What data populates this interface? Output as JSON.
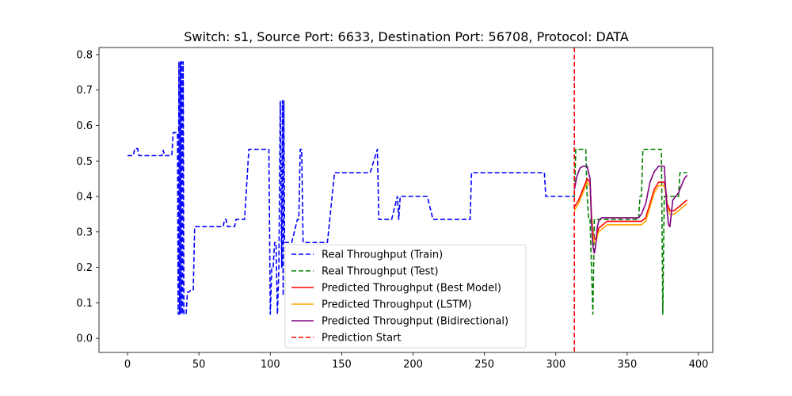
{
  "chart_data": {
    "type": "line",
    "title": "Switch: s1, Source Port: 6633, Destination Port: 56708, Protocol: DATA",
    "xlabel": "",
    "ylabel": "",
    "xlim": [
      -20,
      410
    ],
    "ylim": [
      -0.04,
      0.82
    ],
    "xticks": [
      0,
      50,
      100,
      150,
      200,
      250,
      300,
      350,
      400
    ],
    "xtick_labels": [
      "0",
      "50",
      "100",
      "150",
      "200",
      "250",
      "300",
      "350",
      "400"
    ],
    "yticks": [
      0.0,
      0.1,
      0.2,
      0.3,
      0.4,
      0.5,
      0.6,
      0.7,
      0.8
    ],
    "ytick_labels": [
      "0.0",
      "0.1",
      "0.2",
      "0.3",
      "0.4",
      "0.5",
      "0.6",
      "0.7",
      "0.8"
    ],
    "grid": false,
    "legend_position": "lower-center",
    "prediction_start_x": 313,
    "series": [
      {
        "name": "Real Throughput (Train)",
        "color": "#0000ff",
        "style": "dashed",
        "x": [
          0,
          4,
          5,
          7,
          8,
          10,
          11,
          24,
          25,
          26,
          27,
          31,
          32,
          35,
          35.5,
          36,
          36.5,
          37,
          37.5,
          38,
          38.5,
          39,
          39.5,
          40,
          41,
          42,
          43,
          44,
          46,
          47,
          48,
          49,
          50,
          67,
          68,
          69,
          70,
          71,
          75,
          76,
          77,
          78,
          80,
          82,
          85,
          86,
          90,
          95,
          99,
          100,
          101,
          102,
          103,
          104,
          105,
          106,
          107,
          108,
          108.5,
          109,
          109.5,
          110,
          110.5,
          111,
          112,
          113,
          114,
          115,
          119,
          120,
          121,
          122,
          123,
          124,
          125,
          126,
          127,
          128,
          130,
          140,
          145,
          146,
          150,
          170,
          175,
          176,
          177,
          180,
          185,
          189,
          190,
          191,
          192,
          193,
          195,
          200,
          210,
          214,
          215,
          220,
          230,
          240,
          241,
          245,
          260,
          280,
          292,
          293,
          300,
          313
        ],
        "y": [
          0.515,
          0.515,
          0.535,
          0.535,
          0.515,
          0.515,
          0.515,
          0.515,
          0.53,
          0.515,
          0.515,
          0.515,
          0.58,
          0.58,
          0.068,
          0.78,
          0.068,
          0.78,
          0.068,
          0.78,
          0.068,
          0.78,
          0.068,
          0.068,
          0.068,
          0.13,
          0.13,
          0.135,
          0.135,
          0.315,
          0.315,
          0.315,
          0.315,
          0.315,
          0.335,
          0.335,
          0.315,
          0.315,
          0.315,
          0.335,
          0.335,
          0.335,
          0.335,
          0.335,
          0.533,
          0.533,
          0.533,
          0.533,
          0.533,
          0.068,
          0.2,
          0.2,
          0.27,
          0.27,
          0.068,
          0.2,
          0.67,
          0.2,
          0.67,
          0.12,
          0.67,
          0.27,
          0.27,
          0.27,
          0.27,
          0.27,
          0.27,
          0.27,
          0.335,
          0.335,
          0.533,
          0.533,
          0.27,
          0.27,
          0.27,
          0.27,
          0.27,
          0.27,
          0.27,
          0.27,
          0.467,
          0.467,
          0.467,
          0.467,
          0.533,
          0.335,
          0.335,
          0.335,
          0.335,
          0.4,
          0.335,
          0.4,
          0.4,
          0.4,
          0.4,
          0.4,
          0.4,
          0.335,
          0.335,
          0.335,
          0.335,
          0.335,
          0.467,
          0.467,
          0.467,
          0.467,
          0.467,
          0.4,
          0.4,
          0.4
        ]
      },
      {
        "name": "Real Throughput (Test)",
        "color": "#008000",
        "style": "dashed",
        "x": [
          313,
          314,
          320,
          321,
          322,
          323,
          324,
          325,
          326,
          327,
          328,
          329,
          330,
          340,
          350,
          357,
          358,
          359,
          360,
          361,
          362,
          363,
          364,
          370,
          374,
          375,
          376,
          377,
          378,
          380,
          385,
          386,
          387,
          388,
          390,
          392
        ],
        "y": [
          0.4,
          0.533,
          0.533,
          0.533,
          0.4,
          0.335,
          0.335,
          0.2,
          0.068,
          0.335,
          0.335,
          0.335,
          0.335,
          0.335,
          0.335,
          0.335,
          0.335,
          0.4,
          0.4,
          0.533,
          0.533,
          0.533,
          0.533,
          0.533,
          0.533,
          0.068,
          0.4,
          0.4,
          0.4,
          0.4,
          0.4,
          0.4,
          0.467,
          0.467,
          0.467,
          0.467
        ]
      },
      {
        "name": "Predicted Throughput (Best Model)",
        "color": "#ff0000",
        "style": "solid",
        "x": [
          313,
          316,
          319,
          322,
          324,
          325,
          326,
          327,
          328,
          330,
          333,
          336,
          340,
          345,
          350,
          355,
          358,
          360,
          363,
          366,
          369,
          372,
          375,
          376,
          377,
          378,
          380,
          383,
          386,
          389,
          392
        ],
        "y": [
          0.37,
          0.39,
          0.42,
          0.45,
          0.44,
          0.35,
          0.3,
          0.28,
          0.28,
          0.31,
          0.32,
          0.33,
          0.33,
          0.33,
          0.33,
          0.33,
          0.33,
          0.33,
          0.34,
          0.38,
          0.42,
          0.44,
          0.44,
          0.44,
          0.42,
          0.38,
          0.36,
          0.36,
          0.37,
          0.38,
          0.39
        ]
      },
      {
        "name": "Predicted Throughput (LSTM)",
        "color": "#ffa500",
        "style": "solid",
        "x": [
          313,
          316,
          319,
          322,
          324,
          325,
          326,
          327,
          328,
          330,
          333,
          336,
          340,
          345,
          350,
          355,
          358,
          360,
          363,
          366,
          369,
          372,
          375,
          376,
          377,
          378,
          380,
          383,
          386,
          389,
          392
        ],
        "y": [
          0.36,
          0.38,
          0.41,
          0.44,
          0.43,
          0.34,
          0.29,
          0.27,
          0.27,
          0.3,
          0.31,
          0.32,
          0.32,
          0.32,
          0.32,
          0.32,
          0.32,
          0.32,
          0.33,
          0.37,
          0.41,
          0.43,
          0.43,
          0.43,
          0.41,
          0.37,
          0.35,
          0.35,
          0.36,
          0.37,
          0.38
        ]
      },
      {
        "name": "Predicted Throughput (Bidirectional)",
        "color": "#800080",
        "style": "solid",
        "x": [
          313,
          315,
          317,
          319,
          322,
          324,
          325,
          326,
          327,
          328,
          329,
          330,
          332,
          335,
          340,
          345,
          350,
          355,
          358,
          360,
          363,
          366,
          369,
          372,
          375,
          376,
          377,
          378,
          379,
          380,
          382,
          384,
          386,
          388,
          390,
          392
        ],
        "y": [
          0.42,
          0.46,
          0.48,
          0.485,
          0.485,
          0.45,
          0.33,
          0.26,
          0.24,
          0.26,
          0.31,
          0.33,
          0.34,
          0.34,
          0.34,
          0.34,
          0.34,
          0.34,
          0.34,
          0.35,
          0.38,
          0.44,
          0.47,
          0.485,
          0.485,
          0.485,
          0.42,
          0.36,
          0.32,
          0.315,
          0.39,
          0.4,
          0.41,
          0.43,
          0.45,
          0.46
        ]
      }
    ],
    "legend_extra": {
      "name": "Prediction Start",
      "color": "#ff0000",
      "style": "dashed"
    }
  }
}
